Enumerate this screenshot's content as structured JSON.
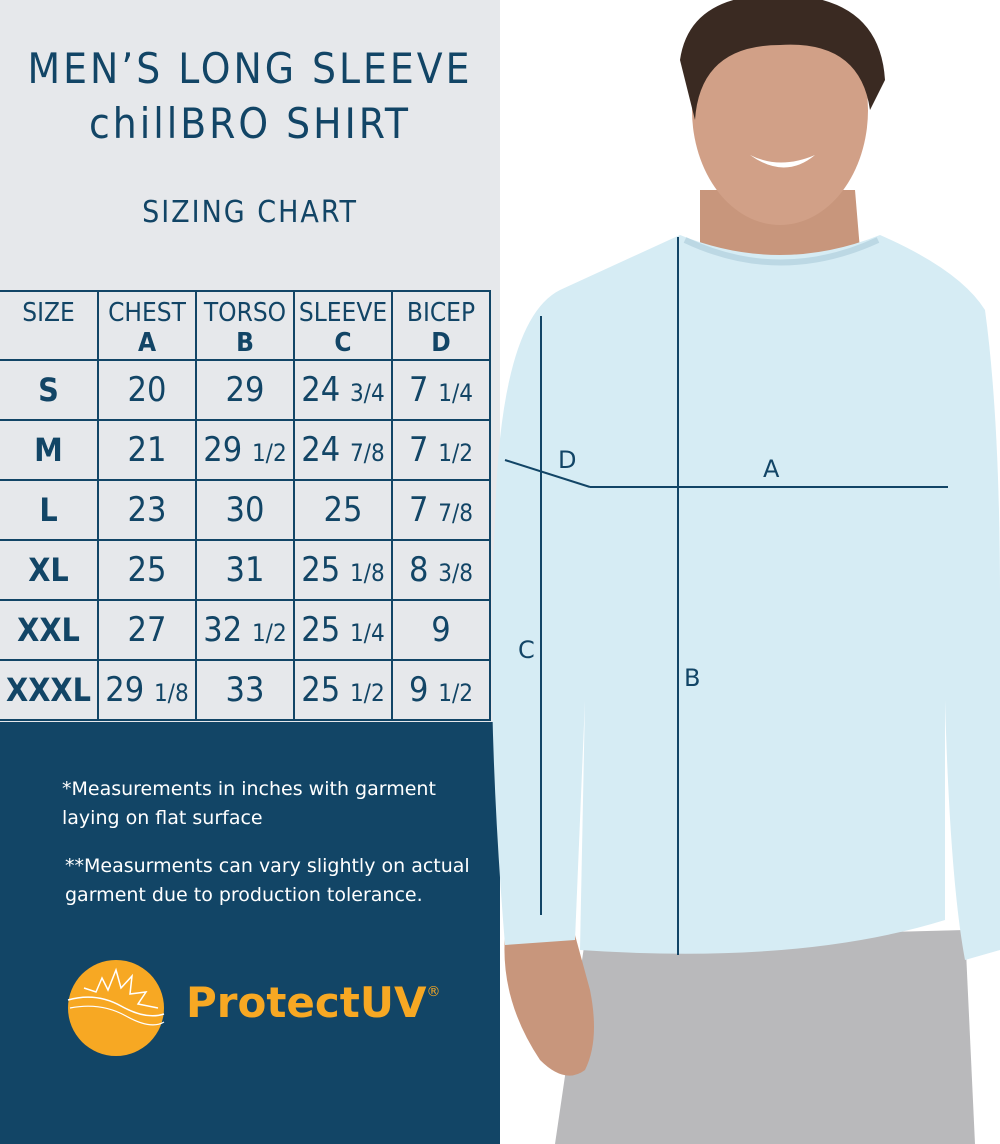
{
  "title": {
    "line1": "MEN’S LONG SLEEVE",
    "line2": "chillBRO SHIRT",
    "subtitle": "SIZING CHART"
  },
  "table": {
    "headers": [
      {
        "label": "SIZE",
        "letter": ""
      },
      {
        "label": "CHEST",
        "letter": "A"
      },
      {
        "label": "TORSO",
        "letter": "B"
      },
      {
        "label": "SLEEVE",
        "letter": "C"
      },
      {
        "label": "BICEP",
        "letter": "D"
      }
    ],
    "rows": [
      {
        "size": "S",
        "values": [
          [
            "20",
            ""
          ],
          [
            "29",
            ""
          ],
          [
            "24",
            "3/4"
          ],
          [
            "7",
            "1/4"
          ]
        ]
      },
      {
        "size": "M",
        "values": [
          [
            "21",
            ""
          ],
          [
            "29",
            "1/2"
          ],
          [
            "24",
            "7/8"
          ],
          [
            "7",
            "1/2"
          ]
        ]
      },
      {
        "size": "L",
        "values": [
          [
            "23",
            ""
          ],
          [
            "30",
            ""
          ],
          [
            "25",
            ""
          ],
          [
            "7",
            "7/8"
          ]
        ]
      },
      {
        "size": "XL",
        "values": [
          [
            "25",
            ""
          ],
          [
            "31",
            ""
          ],
          [
            "25",
            "1/8"
          ],
          [
            "8",
            "3/8"
          ]
        ]
      },
      {
        "size": "XXL",
        "values": [
          [
            "27",
            ""
          ],
          [
            "32",
            "1/2"
          ],
          [
            "25",
            "1/4"
          ],
          [
            "9",
            ""
          ]
        ]
      },
      {
        "size": "XXXL",
        "values": [
          [
            "29",
            "1/8"
          ],
          [
            "33",
            ""
          ],
          [
            "25",
            "1/2"
          ],
          [
            "9",
            "1/2"
          ]
        ]
      }
    ]
  },
  "notes": {
    "note1": [
      "*Measurements in inches with garment",
      "laying on flat surface"
    ],
    "note2": [
      "**Measurments can vary slightly on actual",
      "garment due to production tolerance."
    ]
  },
  "logo": {
    "text": "ProtectUV",
    "mark": "®",
    "color": "#f7a823"
  },
  "measure_labels": {
    "a": "A",
    "b": "B",
    "c": "C",
    "d": "D"
  },
  "colors": {
    "navy": "#124566",
    "panel": "#e6e8eb",
    "shirt": "#d6ecf4"
  }
}
